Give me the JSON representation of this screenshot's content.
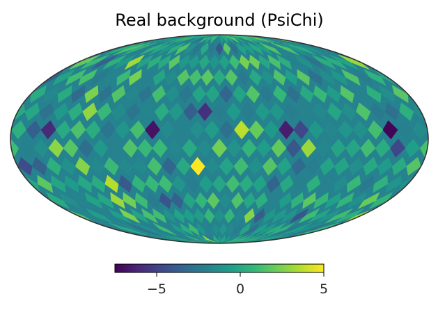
{
  "chart_data": {
    "type": "heatmap",
    "projection": "mollweide",
    "title": "Real background (PsiChi)",
    "colormap": "viridis",
    "colormap_stops": [
      "#440154",
      "#482878",
      "#3e4989",
      "#31688e",
      "#26828e",
      "#1f9e89",
      "#35b779",
      "#6ece58",
      "#b5de2b",
      "#fde725"
    ],
    "vmin": -7.5,
    "vmax": 5,
    "colorbar": {
      "orientation": "horizontal",
      "placement": "bottom",
      "ticks": [
        {
          "value": -5,
          "label": "−5"
        },
        {
          "value": 0,
          "label": "0"
        },
        {
          "value": 5,
          "label": "5"
        }
      ]
    },
    "grid": false,
    "pixel_grid": {
      "rows": 14,
      "cols": 28
    },
    "notable_pixels": [
      {
        "lon": -150,
        "lat": 2,
        "value": -7.4
      },
      {
        "lon": 60,
        "lat": 4,
        "value": -6.9
      },
      {
        "lon": -55,
        "lat": 8,
        "value": -6.5
      },
      {
        "lon": 145,
        "lat": 2,
        "value": -6.0
      },
      {
        "lon": 15,
        "lat": 22,
        "value": -5.8
      },
      {
        "lon": 16,
        "lat": -20,
        "value": 5.0
      },
      {
        "lon": 100,
        "lat": -32,
        "value": 3.6
      },
      {
        "lon": -82,
        "lat": -12,
        "value": 3.1
      },
      {
        "lon": 115,
        "lat": 62,
        "value": 3.2
      },
      {
        "lon": 110,
        "lat": 20,
        "value": 2.9
      },
      {
        "lon": 122,
        "lat": 34,
        "value": 2.5
      },
      {
        "lon": 138,
        "lat": -12,
        "value": 2.8
      },
      {
        "lon": -40,
        "lat": -58,
        "value": 2.7
      },
      {
        "lon": -50,
        "lat": 55,
        "value": 2.2
      }
    ]
  }
}
